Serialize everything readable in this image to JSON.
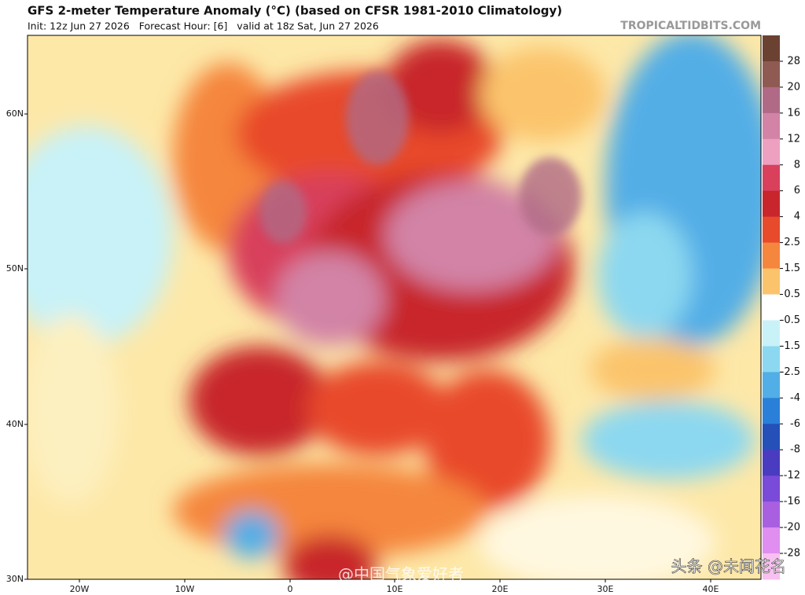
{
  "header": {
    "title": "GFS 2-meter Temperature Anomaly (°C) (based on CFSR 1981-2010 Climatology)",
    "subtitle": "Init: 12z Jun 27 2026   Forecast Hour: [6]   valid at 18z Sat, Jun 27 2026",
    "source": "TROPICALTIDBITS.COM"
  },
  "axes": {
    "lat_labels": [
      "60N",
      "50N",
      "40N",
      "30N"
    ],
    "lon_labels": [
      "20W",
      "10W",
      "0",
      "10E",
      "20E",
      "30E",
      "40E"
    ]
  },
  "colorbar": {
    "labels": [
      "28",
      "20",
      "16",
      "12",
      "8",
      "6",
      "4",
      "2.5",
      "1.5",
      "0.5",
      "-0.5",
      "-1.5",
      "-2.5",
      "-4",
      "-6",
      "-8",
      "-12",
      "-16",
      "-20",
      "-28"
    ],
    "colors": [
      "#6b4232",
      "#8e5a52",
      "#b06a86",
      "#d283a6",
      "#eea0c0",
      "#d8405c",
      "#c8262c",
      "#e84a2c",
      "#f5863e",
      "#fbc46c",
      "#ffffff",
      "#c8f2f8",
      "#8cd8f0",
      "#52aee6",
      "#2a7fd8",
      "#2450b8",
      "#4a3cc0",
      "#7a4ad8",
      "#a860e0",
      "#e08ef0",
      "#f8c0f0"
    ]
  },
  "watermarks": [
    "@中国气象爱好者",
    "头条 @未闻花名"
  ]
}
